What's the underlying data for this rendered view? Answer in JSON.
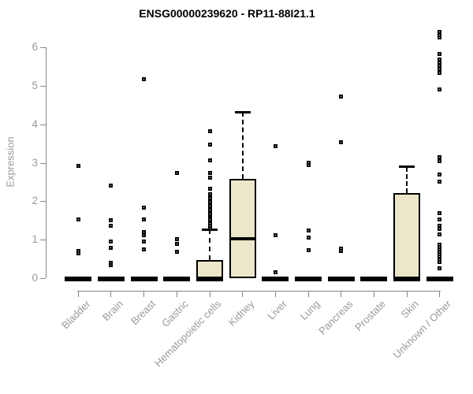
{
  "title": "ENSG00000239620 - RP11-88I21.1",
  "chart_data": {
    "type": "boxplot",
    "title": "ENSG00000239620 - RP11-88I21.1",
    "xlabel": "",
    "ylabel": "Expression",
    "ylim": [
      0,
      6.45
    ],
    "yticks": [
      0,
      1,
      2,
      3,
      4,
      5,
      6
    ],
    "ytick_labels": [
      "0",
      "1",
      "2",
      "3",
      "4",
      "5",
      "6"
    ],
    "grid": false,
    "legend": "none",
    "categories": [
      "Bladder",
      "Brain",
      "Breast",
      "Gastric",
      "Hematopoietic cells",
      "Kidney",
      "Liver",
      "Lung",
      "Pancreas",
      "Prostate",
      "Skin",
      "Unknown / Other"
    ],
    "series": [
      {
        "category": "Bladder",
        "q1": 0,
        "median": 0,
        "q3": 0,
        "whisker_low": 0,
        "whisker_high": 0,
        "outliers": [
          2.91,
          1.53,
          0.72,
          0.66
        ]
      },
      {
        "category": "Brain",
        "q1": 0,
        "median": 0,
        "q3": 0,
        "whisker_low": 0,
        "whisker_high": 0,
        "outliers": [
          2.4,
          1.5,
          1.36,
          0.95,
          0.8,
          0.41,
          0.35
        ]
      },
      {
        "category": "Breast",
        "q1": 0,
        "median": 0,
        "q3": 0,
        "whisker_low": 0,
        "whisker_high": 0,
        "outliers": [
          5.17,
          1.84,
          1.53,
          1.21,
          1.12,
          0.95,
          0.75
        ]
      },
      {
        "category": "Gastric",
        "q1": 0,
        "median": 0,
        "q3": 0,
        "whisker_low": 0,
        "whisker_high": 0,
        "outliers": [
          2.73,
          1.02,
          0.9,
          0.7
        ]
      },
      {
        "category": "Hematopoietic cells",
        "q1": 0,
        "median": 0,
        "q3": 0.48,
        "whisker_low": 0,
        "whisker_high": 1.27,
        "outliers": [
          3.81,
          3.47,
          3.07,
          2.73,
          2.61,
          2.32,
          2.18,
          2.08,
          1.97,
          1.92,
          1.87,
          1.82,
          1.77,
          1.72,
          1.67,
          1.62,
          1.57,
          1.52,
          1.47,
          1.42,
          1.37,
          1.31
        ]
      },
      {
        "category": "Kidney",
        "q1": 0,
        "median": 1.02,
        "q3": 2.59,
        "whisker_low": 0,
        "whisker_high": 4.31,
        "outliers": []
      },
      {
        "category": "Liver",
        "q1": 0,
        "median": 0,
        "q3": 0,
        "whisker_low": 0,
        "whisker_high": 0,
        "outliers": [
          3.42,
          1.11,
          0.15
        ]
      },
      {
        "category": "Lung",
        "q1": 0,
        "median": 0,
        "q3": 0,
        "whisker_low": 0,
        "whisker_high": 0,
        "outliers": [
          3.01,
          2.93,
          1.25,
          1.06,
          0.73
        ]
      },
      {
        "category": "Pancreas",
        "q1": 0,
        "median": 0,
        "q3": 0,
        "whisker_low": 0,
        "whisker_high": 0,
        "outliers": [
          4.71,
          3.54,
          0.78,
          0.72
        ]
      },
      {
        "category": "Prostate",
        "q1": 0,
        "median": 0,
        "q3": 0,
        "whisker_low": 0,
        "whisker_high": 0,
        "outliers": []
      },
      {
        "category": "Skin",
        "q1": 0,
        "median": 0,
        "q3": 2.21,
        "whisker_low": 0,
        "whisker_high": 2.89,
        "outliers": []
      },
      {
        "category": "Unknown / Other",
        "q1": 0,
        "median": 0,
        "q3": 0,
        "whisker_low": 0,
        "whisker_high": 0,
        "outliers": [
          6.4,
          6.32,
          6.24,
          5.82,
          5.68,
          5.6,
          5.52,
          5.43,
          5.33,
          4.9,
          3.15,
          3.05,
          2.69,
          2.51,
          1.7,
          1.52,
          1.36,
          1.28,
          1.14,
          0.88,
          0.81,
          0.75,
          0.69,
          0.62,
          0.56,
          0.49,
          0.42,
          0.27
        ]
      }
    ],
    "colors": {
      "box_fill": "#ece7ca",
      "box_stroke": "#000000",
      "axis": "#888888",
      "axis_text": "#9a9a9a",
      "title_text": "#000000",
      "background": "#ffffff"
    }
  }
}
